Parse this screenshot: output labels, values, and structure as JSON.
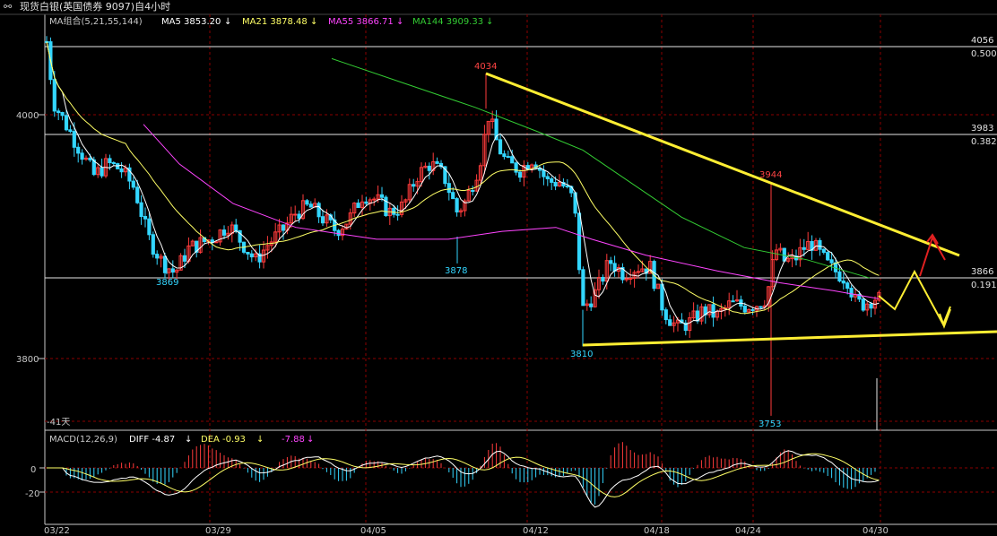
{
  "window": {
    "link_icon": "link-icon",
    "title": "现货白银(英国债券 9097)自4小时"
  },
  "ma_legend": {
    "header": "MA组合(5,21,55,144)",
    "items": [
      {
        "label": "MA5 3853.20",
        "arrow": "↓",
        "color": "#ffffff"
      },
      {
        "label": "MA21 3878.48",
        "arrow": "↓",
        "color": "#ffff66"
      },
      {
        "label": "MA55 3866.71",
        "arrow": "↓",
        "color": "#ff44ff"
      },
      {
        "label": "MA144 3909.33",
        "arrow": "↓",
        "color": "#33cc33"
      }
    ]
  },
  "macd_legend": {
    "header": "MACD(12,26,9)",
    "diff": "DIFF -4.87",
    "diff_arrow": "↓",
    "dea": "DEA -0.93",
    "dea_arrow": "↓",
    "macd": "-7.88",
    "macd_arrow": "↓"
  },
  "price_axis": {
    "labels": [
      "4000",
      "3800"
    ],
    "right_levels": [
      {
        "price": "4056",
        "fib": "0.500"
      },
      {
        "price": "3983",
        "fib": "0.382"
      },
      {
        "price": "3866",
        "fib": "0.191"
      }
    ]
  },
  "annotations": {
    "high_4034": "4034",
    "high_3944": "3944",
    "low_3869": "3869",
    "low_3878": "3878",
    "low_3810": "3810",
    "low_3753": "3753",
    "days_left": "-41天"
  },
  "macd_axis": [
    "0",
    "-20"
  ],
  "x_axis": [
    "03/22",
    "03/29",
    "04/05",
    "04/12",
    "04/18",
    "04/24",
    "04/30"
  ],
  "colors": {
    "up": "#ff3b3b",
    "down": "#33d6ff",
    "trendline": "#ffee33",
    "ma5": "#ffffff",
    "ma21": "#ffff66",
    "ma55": "#ff44ff",
    "ma144": "#33cc33",
    "grid": "#8b0000",
    "arrow_red": "#e02020"
  },
  "chart_data": {
    "type": "candlestick",
    "timeframe": "4h",
    "ylim": [
      3750,
      4060
    ],
    "horizontal_levels": [
      4056,
      3983,
      3866
    ],
    "fib_levels": [
      0.5,
      0.382,
      0.191
    ],
    "annotated_extremes": [
      4034,
      3944,
      3869,
      3878,
      3810,
      3753
    ],
    "moving_averages": {
      "MA5": 3853.2,
      "MA21": 3878.48,
      "MA55": 3866.71,
      "MA144": 3909.33
    },
    "macd": {
      "DIFF": -4.87,
      "DEA": -0.93,
      "MACD": -7.88
    }
  }
}
